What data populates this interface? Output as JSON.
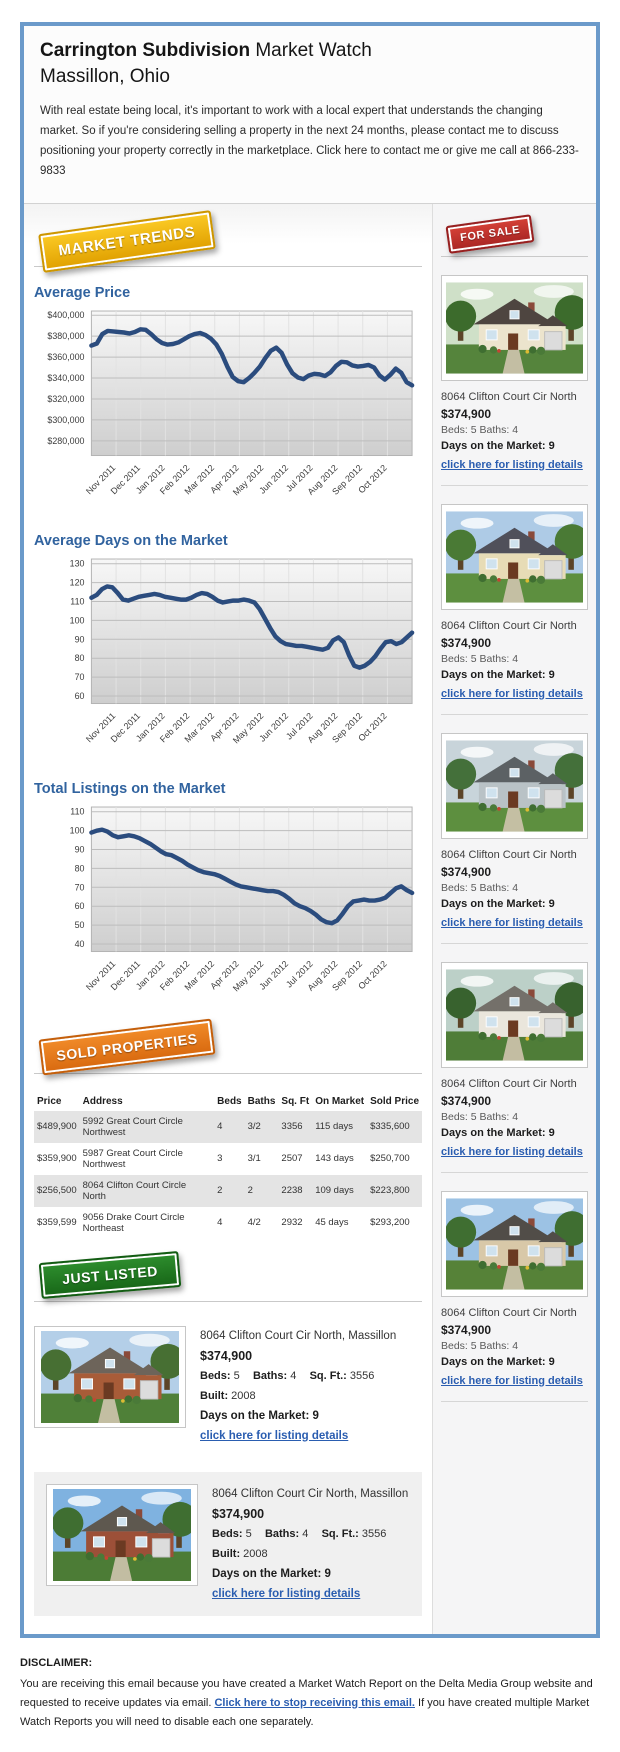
{
  "header": {
    "title_bold": "Carrington Subdivision",
    "title_regular": "Market Watch",
    "subtitle": "Massillon, Ohio",
    "intro": "With real estate being local, it's important to work with a local expert that understands the changing market. So if you're considering selling a property in the next 24 months, please contact me to discuss positioning your property correctly in the marketplace. Click here to contact me or give me call at 866-233-9833"
  },
  "badges": {
    "market_trends": "MARKET TRENDS",
    "for_sale": "FOR SALE",
    "sold_properties": "SOLD PROPERTIES",
    "just_listed": "JUST LISTED"
  },
  "colors": {
    "accent_blue": "#31639f",
    "link_blue": "#2a5db0",
    "chart_line": "#2b4c7e",
    "border_blue": "#6b9aca",
    "badge_gold": "#e8ae00",
    "badge_red": "#b52a27",
    "badge_orange": "#e0761c",
    "badge_green": "#1d7a1d"
  },
  "chart_data": [
    {
      "type": "line",
      "title": "Average Price",
      "x_labels": [
        "Nov 2011",
        "Dec 2011",
        "Jan 2012",
        "Feb 2012",
        "Mar 2012",
        "Apr 2012",
        "May 2012",
        "Jun 2012",
        "Jul 2012",
        "Aug 2012",
        "Sep 2012",
        "Oct 2012"
      ],
      "values": [
        371000,
        373000,
        382000,
        385000,
        384500,
        384000,
        383500,
        382500,
        384000,
        386500,
        386000,
        382000,
        377000,
        373500,
        372000,
        372500,
        374000,
        377000,
        380000,
        382000,
        383000,
        381000,
        377500,
        372000,
        363000,
        351000,
        341000,
        337000,
        336000,
        340000,
        345000,
        351000,
        359000,
        366000,
        369000,
        364000,
        353000,
        344500,
        340500,
        339000,
        342500,
        344000,
        343500,
        342000,
        345500,
        351500,
        355500,
        355000,
        352000,
        351000,
        351500,
        352500,
        350000,
        342500,
        338500,
        343000,
        349000,
        345000,
        336000,
        333000
      ],
      "yticks": [
        400000,
        380000,
        360000,
        340000,
        320000,
        300000,
        280000
      ],
      "ytick_labels": [
        "$400,000",
        "$380,000",
        "$360,000",
        "$340,000",
        "$320,000",
        "$300,000",
        "$280,000"
      ],
      "ylim": [
        266000,
        404000
      ],
      "grid": true,
      "legend": "none"
    },
    {
      "type": "line",
      "title": "Average Days on the Market",
      "x_labels": [
        "Nov 2011",
        "Dec 2011",
        "Jan 2012",
        "Feb 2012",
        "Mar 2012",
        "Apr 2012",
        "May 2012",
        "Jun 2012",
        "Jul 2012",
        "Aug 2012",
        "Sep 2012",
        "Oct 2012"
      ],
      "values": [
        112,
        113.5,
        116.5,
        118,
        117.5,
        114.5,
        111,
        110.5,
        111.5,
        112.5,
        113,
        113.5,
        114,
        113.5,
        112.5,
        112,
        111.5,
        111,
        111,
        112,
        113.5,
        114.5,
        114,
        112.5,
        110.5,
        109.5,
        110,
        110.5,
        110.5,
        111,
        110.5,
        109.5,
        106,
        101,
        96,
        91.5,
        89,
        87.5,
        87,
        86.5,
        86.5,
        86,
        85.5,
        85,
        84.5,
        85.5,
        89.5,
        91,
        88.5,
        81.5,
        76,
        75,
        76,
        78,
        81,
        85,
        88.5,
        89,
        87.5,
        88.5,
        91,
        93.5
      ],
      "yticks": [
        130,
        120,
        110,
        100,
        90,
        80,
        70,
        60
      ],
      "ytick_labels": [
        "130",
        "120",
        "110",
        "100",
        "90",
        "80",
        "70",
        "60"
      ],
      "ylim": [
        56,
        132.5
      ],
      "grid": true,
      "legend": "none"
    },
    {
      "type": "line",
      "title": "Total Listings on the Market",
      "x_labels": [
        "Nov 2011",
        "Dec 2011",
        "Jan 2012",
        "Feb 2012",
        "Mar 2012",
        "Apr 2012",
        "May 2012",
        "Jun 2012",
        "Jul 2012",
        "Aug 2012",
        "Sep 2012",
        "Oct 2012"
      ],
      "values": [
        99,
        100,
        100.5,
        99.5,
        97.5,
        96.5,
        97,
        97.5,
        97,
        96,
        94.5,
        93,
        91,
        89,
        87.5,
        87,
        85.5,
        84,
        82,
        80.5,
        79,
        78,
        77.5,
        77,
        76,
        74.5,
        73,
        71.5,
        70.5,
        70,
        69.5,
        69,
        68.5,
        68,
        68,
        67.5,
        66,
        64,
        61.5,
        60,
        59,
        57.5,
        55.5,
        53,
        51.5,
        51,
        52.5,
        56,
        60,
        62.5,
        63,
        63.5,
        63,
        63,
        63.5,
        64.5,
        67,
        69.5,
        70.5,
        68.5,
        67
      ],
      "yticks": [
        110,
        100,
        90,
        80,
        70,
        60,
        50,
        40
      ],
      "ytick_labels": [
        "110",
        "100",
        "90",
        "80",
        "70",
        "60",
        "50",
        "40"
      ],
      "ylim": [
        36,
        112.5
      ],
      "grid": true,
      "legend": "none"
    }
  ],
  "for_sale": {
    "listings": [
      {
        "address": "8064 Clifton Court Cir North",
        "price": "$374,900",
        "beds_baths": "Beds: 5 Baths: 4",
        "days_on_market": "Days on the Market: 9",
        "link_label": "click here for listing details"
      },
      {
        "address": "8064 Clifton Court Cir North",
        "price": "$374,900",
        "beds_baths": "Beds: 5 Baths: 4",
        "days_on_market": "Days on the Market: 9",
        "link_label": "click here for listing details"
      },
      {
        "address": "8064 Clifton Court Cir North",
        "price": "$374,900",
        "beds_baths": "Beds: 5 Baths: 4",
        "days_on_market": "Days on the Market: 9",
        "link_label": "click here for listing details"
      },
      {
        "address": "8064 Clifton Court Cir North",
        "price": "$374,900",
        "beds_baths": "Beds: 5 Baths: 4",
        "days_on_market": "Days on the Market: 9",
        "link_label": "click here for listing details"
      },
      {
        "address": "8064 Clifton Court Cir North",
        "price": "$374,900",
        "beds_baths": "Beds: 5 Baths: 4",
        "days_on_market": "Days on the Market: 9",
        "link_label": "click here for listing details"
      }
    ]
  },
  "sold_table": {
    "headers": [
      "Price",
      "Address",
      "Beds",
      "Baths",
      "Sq. Ft",
      "On Market",
      "Sold Price"
    ],
    "rows": [
      [
        "$489,900",
        "5992 Great Court Circle Northwest",
        "4",
        "3/2",
        "3356",
        "115 days",
        "$335,600"
      ],
      [
        "$359,900",
        "5987 Great Court Circle Northwest",
        "3",
        "3/1",
        "2507",
        "143 days",
        "$250,700"
      ],
      [
        "$256,500",
        "8064 Clifton Court Circle North",
        "2",
        "2",
        "2238",
        "109 days",
        "$223,800"
      ],
      [
        "$359,599",
        "9056 Drake Court Circle Northeast",
        "4",
        "4/2",
        "2932",
        "45 days",
        "$293,200"
      ]
    ]
  },
  "just_listed": {
    "listings": [
      {
        "address": "8064 Clifton Court Cir North, Massillon",
        "price": "$374,900",
        "specs": [
          {
            "label": "Beds:",
            "value": "5"
          },
          {
            "label": "Baths:",
            "value": "4"
          },
          {
            "label": "Sq. Ft.:",
            "value": "3556"
          },
          {
            "label": "Built:",
            "value": "2008"
          }
        ],
        "days_on_market": "Days on the Market: 9",
        "link_label": "click here for listing details"
      },
      {
        "address": "8064 Clifton Court Cir North, Massillon",
        "price": "$374,900",
        "specs": [
          {
            "label": "Beds:",
            "value": "5"
          },
          {
            "label": "Baths:",
            "value": "4"
          },
          {
            "label": "Sq. Ft.:",
            "value": "3556"
          },
          {
            "label": "Built:",
            "value": "2008"
          }
        ],
        "days_on_market": "Days on the Market: 9",
        "link_label": "click here for listing details"
      }
    ]
  },
  "disclaimer": {
    "heading": "DISCLAIMER:",
    "text_before": "You are receiving this email because you have created a Market Watch Report on the Delta Media Group website and requested to receive updates via email. ",
    "link_label": "Click here to stop receiving this email.",
    "text_after": " If you have created multiple Market Watch Reports you will need to disable each one separately."
  }
}
